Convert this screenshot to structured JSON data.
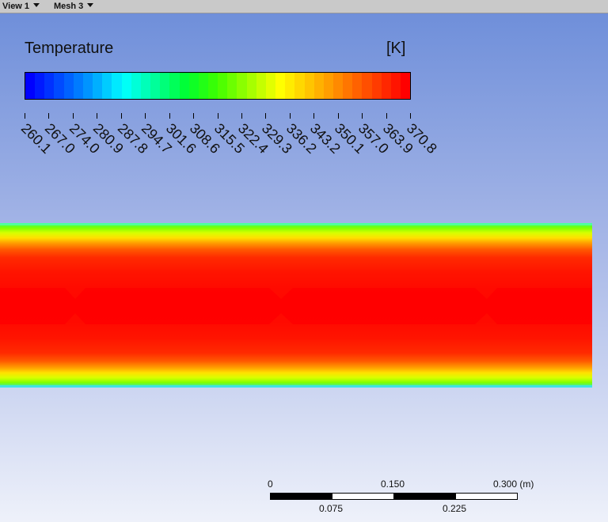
{
  "toolbar": {
    "view_label": "View 1",
    "mesh_label": "Mesh 3"
  },
  "legend": {
    "title": "Temperature",
    "units": "[K]",
    "ticks": [
      "260.1",
      "267.0",
      "274.0",
      "280.9",
      "287.8",
      "294.7",
      "301.6",
      "308.6",
      "315.5",
      "322.4",
      "329.3",
      "336.2",
      "343.2",
      "350.1",
      "357.0",
      "363.9",
      "370.8"
    ]
  },
  "contour": {
    "variable": "Temperature",
    "colormap": [
      "#0000ff",
      "#0050ff",
      "#00a0ff",
      "#00ffff",
      "#00ff9a",
      "#00ff30",
      "#40ff00",
      "#a0ff00",
      "#ffff00",
      "#ffc000",
      "#ff8000",
      "#ff4000",
      "#ff0000"
    ]
  },
  "scale_bar": {
    "top_labels": [
      "0",
      "0.150",
      "0.300 (m)"
    ],
    "bottom_labels": [
      "0.075",
      "0.225"
    ]
  }
}
